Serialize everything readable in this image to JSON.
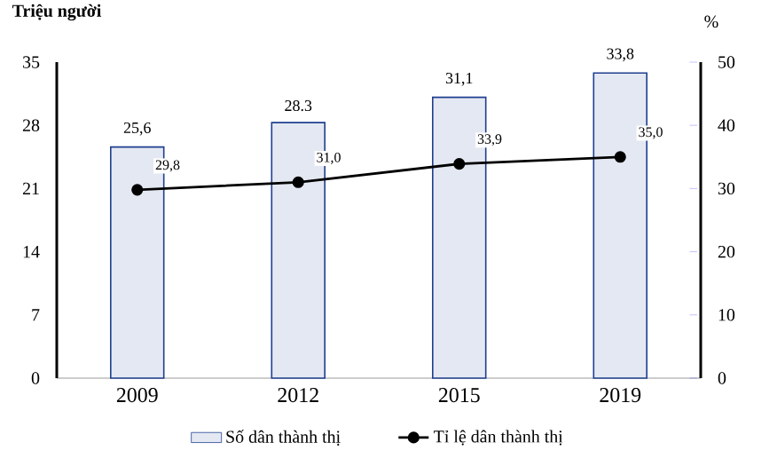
{
  "chart_data": {
    "type": "bar",
    "categories": [
      "2009",
      "2012",
      "2015",
      "2019"
    ],
    "ylabel": "Triệu người",
    "y2label": "%",
    "series": [
      {
        "name": "Số dân thành thị",
        "color": "#1f3f8f",
        "values": [
          25.6,
          28.3,
          31.1,
          33.8
        ],
        "value_labels": [
          "25,6",
          "28.3",
          "31,1",
          "33,8"
        ]
      },
      {
        "name": "Tỉ lệ dân thành thị",
        "type": "line",
        "axis": "y2",
        "color": "#000000",
        "values": [
          29.8,
          31.0,
          33.9,
          35.0
        ],
        "value_labels": [
          "29,8",
          "31,0",
          "33,9",
          "35,0"
        ]
      }
    ],
    "ylim": [
      0,
      35
    ],
    "yticks": [
      0,
      7,
      14,
      21,
      28,
      35
    ],
    "y2lim": [
      0,
      50
    ],
    "y2ticks": [
      0,
      10,
      20,
      30,
      40,
      50
    ],
    "legend": "bottom",
    "marker": "circle",
    "line_style": "solid"
  }
}
